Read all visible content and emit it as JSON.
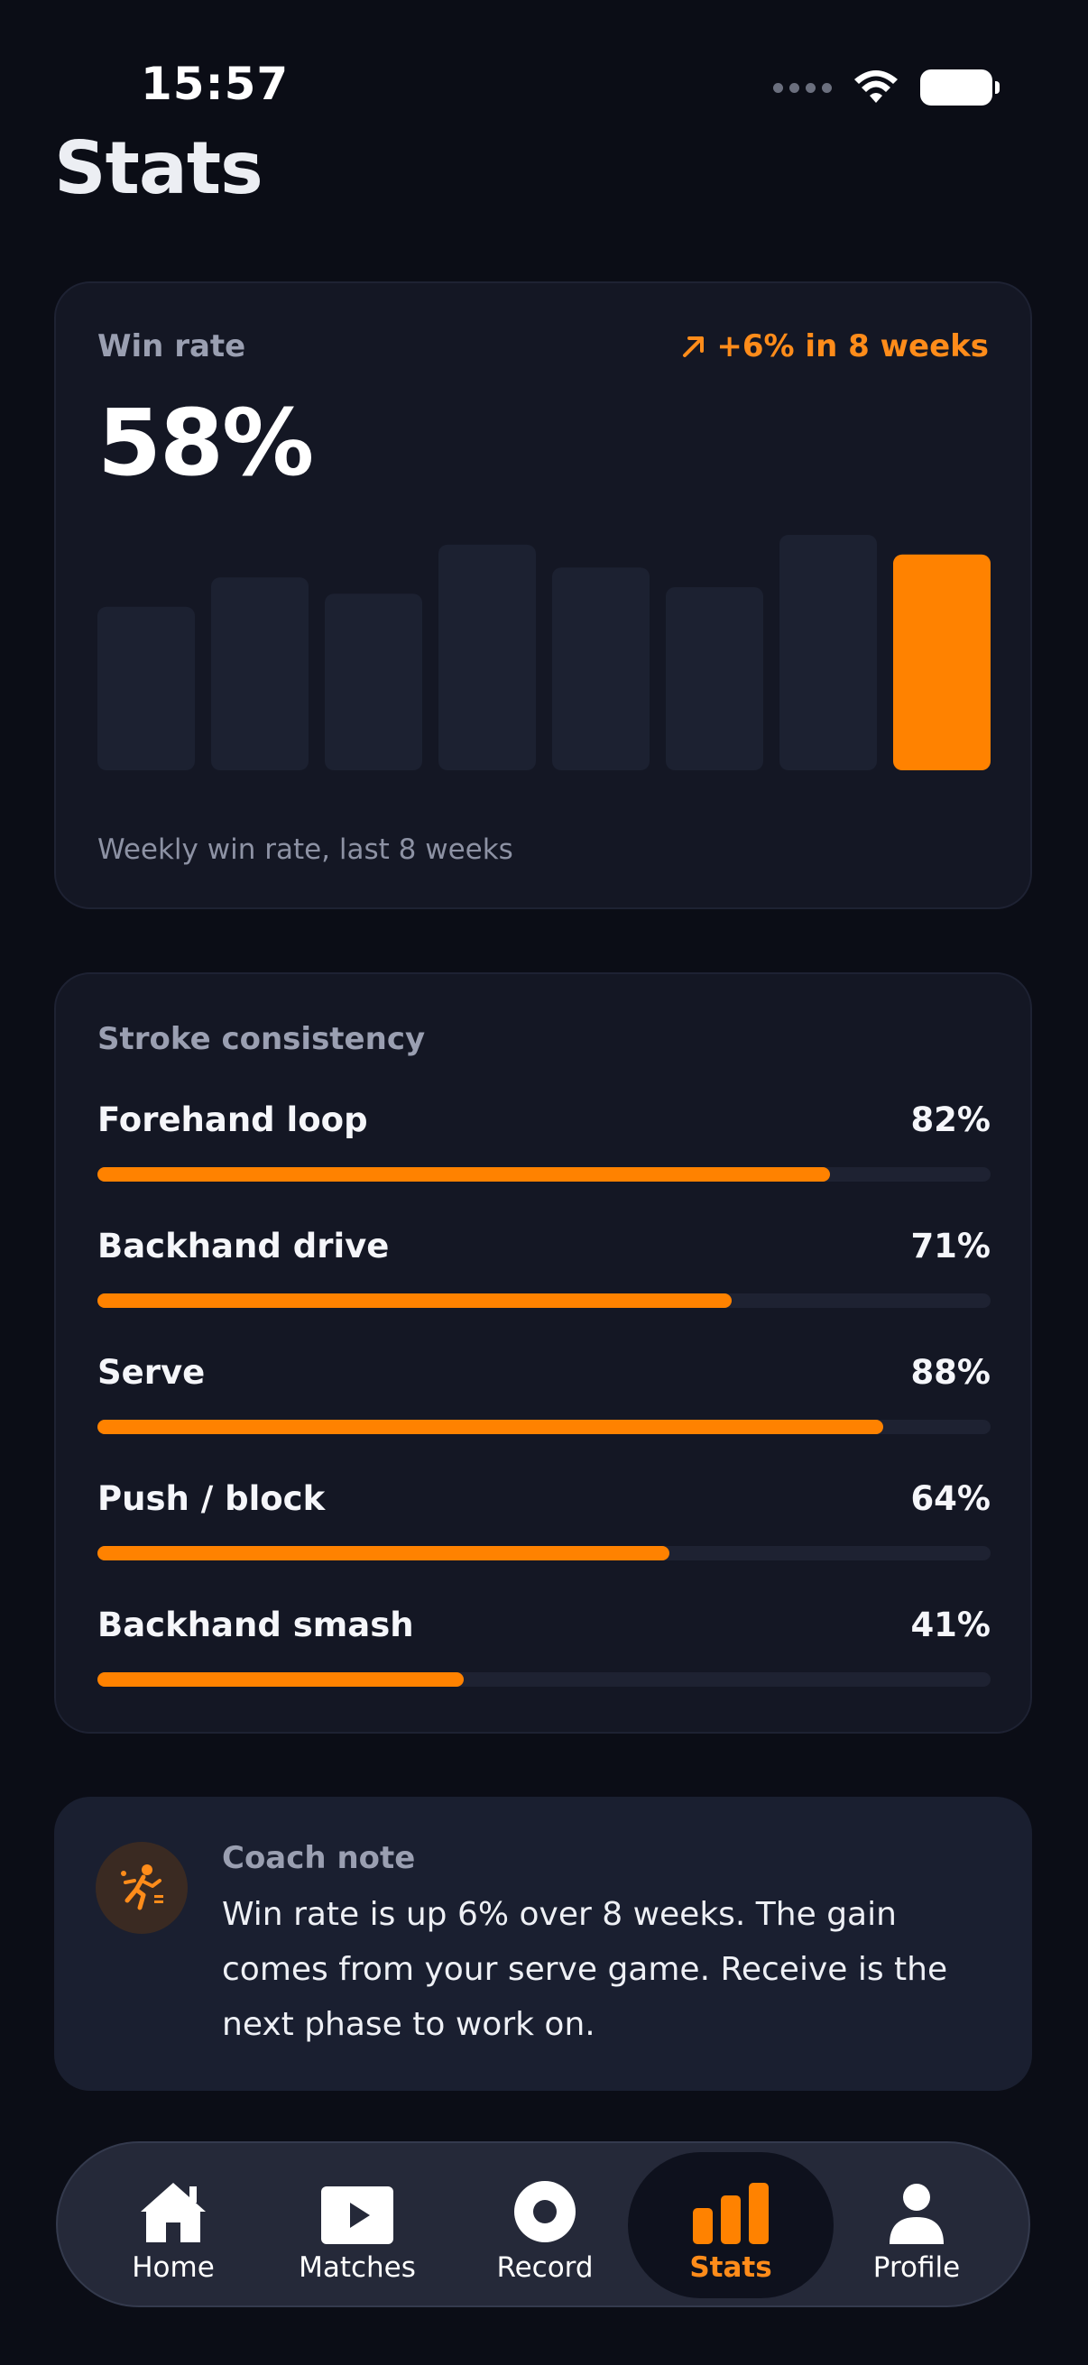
{
  "status_bar": {
    "time": "15:57"
  },
  "page_title": "Stats",
  "win_card": {
    "label": "Win rate",
    "trend": "+6% in 8 weeks",
    "value": "58%",
    "caption": "Weekly win rate, last 8 weeks",
    "accent": "#ff8200",
    "bar_color": "#1c2131"
  },
  "chart_data": {
    "type": "bar",
    "categories": [
      "",
      "",
      "",
      "",
      "",
      "",
      "",
      ""
    ],
    "values": [
      50,
      59,
      54,
      69,
      62,
      56,
      72,
      66
    ],
    "highlight_index": 7,
    "title": "",
    "xlabel": "",
    "ylabel": ""
  },
  "stroke_card": {
    "title": "Stroke consistency",
    "items": [
      {
        "name": "Forehand loop",
        "value_label": "82%",
        "value": 0.82
      },
      {
        "name": "Backhand drive",
        "value_label": "71%",
        "value": 0.71
      },
      {
        "name": "Serve",
        "value_label": "88%",
        "value": 0.88
      },
      {
        "name": "Push / block",
        "value_label": "64%",
        "value": 0.64
      },
      {
        "name": "Backhand smash",
        "value_label": "41%",
        "value": 0.41
      }
    ]
  },
  "coach_note": {
    "title": "Coach note",
    "text": "Win rate is up 6% over 8 weeks. The gain comes from your serve game. Receive is the next phase to work on.",
    "icon": "table-tennis-player-icon"
  },
  "tabbar": {
    "active": "Stats",
    "tabs": [
      {
        "label": "Home",
        "icon": "home-icon"
      },
      {
        "label": "Matches",
        "icon": "play-icon"
      },
      {
        "label": "Record",
        "icon": "record-icon"
      },
      {
        "label": "Stats",
        "icon": "bar-chart-icon"
      },
      {
        "label": "Profile",
        "icon": "person-icon"
      }
    ]
  }
}
